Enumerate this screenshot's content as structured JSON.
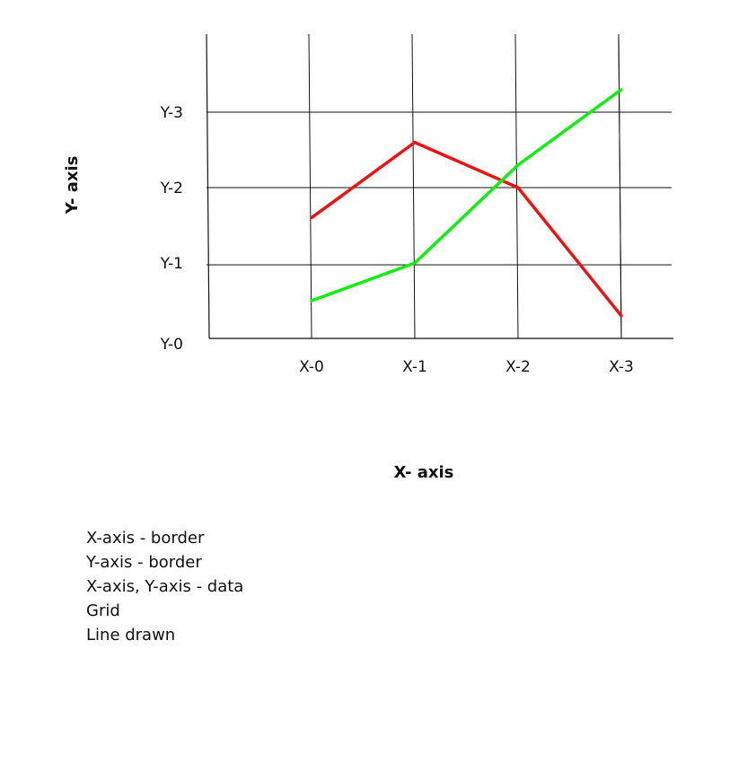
{
  "chart_data": {
    "type": "line",
    "title": "",
    "xlabel": "X- axis",
    "ylabel": "Y- axis",
    "categories": [
      "X-0",
      "X-1",
      "X-2",
      "X-3"
    ],
    "y_ticks": [
      "Y-0",
      "Y-1",
      "Y-2",
      "Y-3"
    ],
    "ylim": [
      0,
      3.3
    ],
    "grid": true,
    "legend": "none",
    "series": [
      {
        "color": "#ee1111",
        "values": [
          1.6,
          2.6,
          2.0,
          0.3
        ]
      },
      {
        "color": "#11ee11",
        "values": [
          0.5,
          1.0,
          2.3,
          3.3
        ]
      }
    ]
  },
  "notes": [
    "X-axis - border",
    "Y-axis - border",
    "X-axis, Y-axis - data",
    "Grid",
    "Line drawn"
  ]
}
